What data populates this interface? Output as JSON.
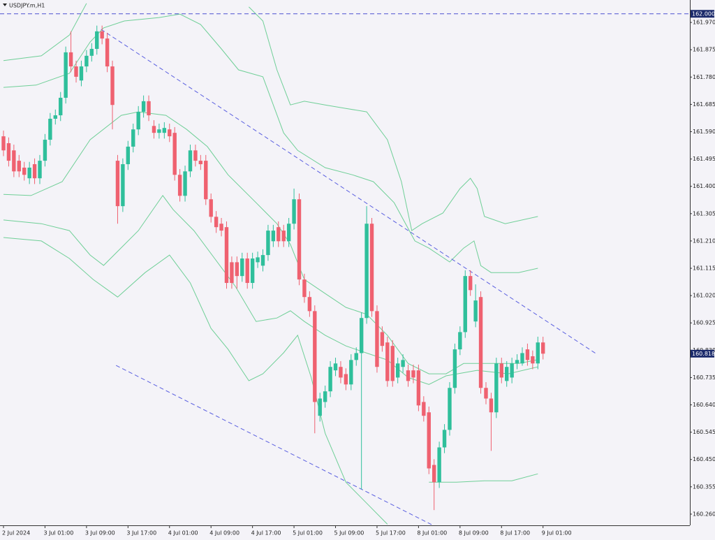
{
  "chart_data": {
    "type": "candlestick",
    "title": "USDJPY.m,H1",
    "categories": [
      "2 Jul 2024",
      null,
      null,
      null,
      null,
      null,
      null,
      null,
      "3 Jul 01:00",
      null,
      null,
      null,
      null,
      null,
      null,
      null,
      "3 Jul 09:00",
      null,
      null,
      null,
      null,
      null,
      null,
      null,
      "3 Jul 17:00",
      null,
      null,
      null,
      null,
      null,
      null,
      null,
      "4 Jul 01:00",
      null,
      null,
      null,
      null,
      null,
      null,
      null,
      "4 Jul 09:00",
      null,
      null,
      null,
      null,
      null,
      null,
      null,
      "4 Jul 17:00",
      null,
      null,
      null,
      null,
      null,
      null,
      null,
      "5 Jul 01:00",
      null,
      null,
      null,
      null,
      null,
      null,
      null,
      "5 Jul 09:00",
      null,
      null,
      null,
      null,
      null,
      null,
      null,
      "5 Jul 17:00",
      null,
      null,
      null,
      null,
      null,
      null,
      null,
      "8 Jul 01:00",
      null,
      null,
      null,
      null,
      null,
      null,
      null,
      "8 Jul 09:00",
      null,
      null,
      null,
      null,
      null,
      null,
      null,
      "8 Jul 17:00",
      null,
      null,
      null,
      null,
      null,
      null,
      null,
      "9 Jul 01:00"
    ],
    "open": [
      161.574,
      161.55,
      161.525,
      161.489,
      161.465,
      161.428,
      161.477,
      161.428,
      161.489,
      161.562,
      161.635,
      161.647,
      161.708,
      161.866,
      161.817,
      161.768,
      161.817,
      161.854,
      161.878,
      161.939,
      161.914,
      161.817,
      161.489,
      161.331,
      161.477,
      161.538,
      161.598,
      161.659,
      161.696,
      161.61,
      161.586,
      161.586,
      161.598,
      161.586,
      161.44,
      161.367,
      161.452,
      161.525,
      161.489,
      161.489,
      161.355,
      161.294,
      161.27,
      161.258,
      161.136,
      161.136,
      161.088,
      161.149,
      161.064,
      161.136,
      161.124,
      161.161,
      161.209,
      161.258,
      161.246,
      161.209,
      161.27,
      161.355,
      161.076,
      161.015,
      160.966,
      160.602,
      160.65,
      160.687,
      160.76,
      160.772,
      160.747,
      160.711,
      160.796,
      160.82,
      160.942,
      161.27,
      160.966,
      160.893,
      160.857,
      160.845,
      160.735,
      160.772,
      160.76,
      160.76,
      160.76,
      160.65,
      160.614,
      160.431,
      160.371,
      160.492,
      160.553,
      160.699,
      160.833,
      160.893,
      161.088,
      160.93,
      161.015,
      160.699,
      160.662,
      160.614,
      160.784,
      160.723,
      160.735,
      160.784,
      160.784,
      160.833,
      160.809,
      160.784,
      160.857
    ],
    "high": [
      161.594,
      161.57,
      161.545,
      161.509,
      161.485,
      161.485,
      161.497,
      161.509,
      161.582,
      161.655,
      161.667,
      161.728,
      161.886,
      161.939,
      161.837,
      161.837,
      161.874,
      161.898,
      161.959,
      161.959,
      161.934,
      161.837,
      161.509,
      161.497,
      161.558,
      161.618,
      161.679,
      161.716,
      161.716,
      161.63,
      161.618,
      161.623,
      161.618,
      161.606,
      161.46,
      161.472,
      161.545,
      161.545,
      161.509,
      161.509,
      161.375,
      161.314,
      161.29,
      161.278,
      161.156,
      161.156,
      161.169,
      161.169,
      161.169,
      161.173,
      161.181,
      161.266,
      161.266,
      161.278,
      161.266,
      161.29,
      161.392,
      161.375,
      161.096,
      161.035,
      160.986,
      160.682,
      160.707,
      160.792,
      160.804,
      160.792,
      160.767,
      160.816,
      160.84,
      160.962,
      161.331,
      161.29,
      160.986,
      160.913,
      160.877,
      160.865,
      160.804,
      160.816,
      160.78,
      160.78,
      160.78,
      160.67,
      160.634,
      160.451,
      160.512,
      160.573,
      160.719,
      160.853,
      160.913,
      161.108,
      161.108,
      161.059,
      161.035,
      160.719,
      160.682,
      160.804,
      160.804,
      160.792,
      160.804,
      160.816,
      160.84,
      160.853,
      160.829,
      160.877,
      160.877
    ],
    "low": [
      161.505,
      161.469,
      161.432,
      161.432,
      161.42,
      161.408,
      161.408,
      161.408,
      161.469,
      161.542,
      161.615,
      161.627,
      161.688,
      161.797,
      161.761,
      161.748,
      161.797,
      161.834,
      161.858,
      161.894,
      161.797,
      161.598,
      161.27,
      161.311,
      161.457,
      161.518,
      161.578,
      161.639,
      161.627,
      161.566,
      161.566,
      161.566,
      161.554,
      161.42,
      161.347,
      161.347,
      161.432,
      161.469,
      161.457,
      161.335,
      161.274,
      161.238,
      161.226,
      161.044,
      161.044,
      161.044,
      161.068,
      161.044,
      161.044,
      161.116,
      161.104,
      161.141,
      161.189,
      161.189,
      161.189,
      161.189,
      161.25,
      161.056,
      160.995,
      160.946,
      160.541,
      160.582,
      160.63,
      160.667,
      160.74,
      160.715,
      160.691,
      160.691,
      160.776,
      160.346,
      160.922,
      160.946,
      160.752,
      160.825,
      160.703,
      160.703,
      160.715,
      160.752,
      160.703,
      160.715,
      160.618,
      160.582,
      160.399,
      160.274,
      160.351,
      160.472,
      160.533,
      160.679,
      160.813,
      160.873,
      161.019,
      160.91,
      160.679,
      160.642,
      160.48,
      160.594,
      160.715,
      160.703,
      160.715,
      160.764,
      160.776,
      160.776,
      160.764,
      160.764,
      160.798
    ],
    "close": [
      161.525,
      161.489,
      161.452,
      161.452,
      161.44,
      161.465,
      161.428,
      161.489,
      161.562,
      161.635,
      161.647,
      161.708,
      161.866,
      161.817,
      161.781,
      161.817,
      161.854,
      161.878,
      161.939,
      161.914,
      161.817,
      161.683,
      161.331,
      161.477,
      161.538,
      161.598,
      161.659,
      161.696,
      161.647,
      161.586,
      161.598,
      161.603,
      161.574,
      161.44,
      161.367,
      161.452,
      161.525,
      161.489,
      161.477,
      161.355,
      161.294,
      161.258,
      161.246,
      161.064,
      161.064,
      161.088,
      161.149,
      161.064,
      161.149,
      161.153,
      161.161,
      161.246,
      161.246,
      161.209,
      161.209,
      161.27,
      161.355,
      161.076,
      161.015,
      160.966,
      160.65,
      160.662,
      160.687,
      160.772,
      160.784,
      160.735,
      160.711,
      160.796,
      160.82,
      160.942,
      161.27,
      160.966,
      160.772,
      160.845,
      160.723,
      160.723,
      160.784,
      160.796,
      160.723,
      160.735,
      160.638,
      160.602,
      160.419,
      160.371,
      160.492,
      160.553,
      160.699,
      160.833,
      160.893,
      161.088,
      161.039,
      161.003,
      160.699,
      160.662,
      160.614,
      160.784,
      160.735,
      160.772,
      160.784,
      160.796,
      160.82,
      160.796,
      160.784,
      160.857,
      160.818
    ],
    "up_color": "#2fbf9b",
    "down_color": "#ef6170",
    "ylim": [
      160.221,
      162.048
    ],
    "yticks": [
      {
        "value": 161.97,
        "label": "161.970"
      },
      {
        "value": 161.875,
        "label": "161.875"
      },
      {
        "value": 161.78,
        "label": "161.780"
      },
      {
        "value": 161.685,
        "label": "161.685"
      },
      {
        "value": 161.59,
        "label": "161.590"
      },
      {
        "value": 161.495,
        "label": "161.495"
      },
      {
        "value": 161.4,
        "label": "161.400"
      },
      {
        "value": 161.305,
        "label": "161.305"
      },
      {
        "value": 161.21,
        "label": "161.210"
      },
      {
        "value": 161.115,
        "label": "161.115"
      },
      {
        "value": 161.02,
        "label": "161.020"
      },
      {
        "value": 160.925,
        "label": "160.925"
      },
      {
        "value": 160.83,
        "label": "160.830"
      },
      {
        "value": 160.735,
        "label": "160.735"
      },
      {
        "value": 160.64,
        "label": "160.640"
      },
      {
        "value": 160.545,
        "label": "160.545"
      },
      {
        "value": 160.45,
        "label": "160.450"
      },
      {
        "value": 160.355,
        "label": "160.355"
      },
      {
        "value": 160.26,
        "label": "160.260"
      }
    ],
    "level": {
      "value": 162.0,
      "label": "162.000",
      "color": "#4a4fd0"
    },
    "last_price": 160.818,
    "bands": [
      {
        "color": "#6fcf97",
        "x": [
          0,
          7.3,
          12.7,
          16,
          30,
          47.3,
          50,
          52.7,
          55.3,
          58,
          62,
          66,
          70,
          74,
          76.7,
          78.7,
          80.7,
          84.7,
          88,
          90,
          91.3,
          92.7,
          96.7,
          103
        ],
        "values": [
          161.837,
          161.854,
          161.926,
          162.036,
          null,
          162.024,
          161.975,
          161.805,
          161.683,
          161.696,
          161.683,
          161.671,
          161.659,
          161.562,
          161.416,
          161.246,
          161.27,
          161.307,
          161.392,
          161.428,
          161.392,
          161.295,
          161.27,
          161.295
        ]
      },
      {
        "color": "#6fcf97",
        "x": [
          0,
          6.3,
          12.7,
          16.7,
          19.3,
          23.3,
          30,
          34,
          38,
          42,
          45.3,
          50,
          54,
          56.7,
          62,
          67.3,
          71.3,
          75.3,
          79.3,
          82,
          86,
          88.7,
          90.7,
          92,
          94,
          99.3,
          103
        ],
        "values": [
          161.744,
          161.752,
          161.793,
          161.902,
          161.951,
          161.975,
          161.987,
          161.999,
          161.963,
          161.878,
          161.805,
          161.781,
          161.586,
          161.525,
          161.465,
          161.44,
          161.416,
          161.343,
          161.21,
          161.185,
          161.137,
          161.185,
          161.21,
          161.124,
          161.1,
          161.1,
          161.115
        ]
      },
      {
        "color": "#6fcf97",
        "x": [
          0,
          5.3,
          11.3,
          16.7,
          22.7,
          26,
          31.3,
          35.3,
          39.3,
          43.3,
          48.7,
          52.7,
          55.3,
          58,
          62,
          66,
          70,
          74,
          78,
          82,
          85.3,
          88.7,
          91.3,
          95.3,
          99.3,
          103
        ],
        "values": [
          161.372,
          161.368,
          161.416,
          161.562,
          161.647,
          161.659,
          161.647,
          161.598,
          161.538,
          161.44,
          161.343,
          161.27,
          161.198,
          161.076,
          161.027,
          160.979,
          160.955,
          160.882,
          160.784,
          160.748,
          160.748,
          160.784,
          160.784,
          160.784,
          160.784,
          160.797
        ]
      },
      {
        "color": "#6fcf97",
        "x": [
          0,
          7.3,
          12.7,
          16.7,
          19.3,
          26,
          30.7,
          32.7,
          36.7,
          40.7,
          44.7,
          48.7,
          52.7,
          55.3,
          58,
          62,
          66,
          70,
          74,
          78,
          82,
          85.3,
          91.3,
          97.3,
          103
        ],
        "values": [
          161.283,
          161.27,
          161.246,
          161.161,
          161.125,
          161.246,
          161.368,
          161.319,
          161.246,
          161.149,
          161.052,
          160.93,
          160.942,
          160.967,
          160.93,
          160.882,
          160.845,
          160.82,
          160.796,
          160.735,
          160.711,
          160.741,
          160.76,
          160.748,
          160.772
        ]
      },
      {
        "color": "#6fcf97",
        "x": [
          0,
          7.3,
          12.7,
          17.3,
          22,
          27.3,
          32,
          36,
          40,
          43.3,
          47.3,
          50,
          54,
          56.7,
          59.3,
          62,
          66,
          70,
          74,
          77,
          82,
          87.3,
          92.7,
          98,
          103
        ],
        "values": [
          161.222,
          161.21,
          161.149,
          161.076,
          161.015,
          161.1,
          161.161,
          161.064,
          160.906,
          160.833,
          160.724,
          160.748,
          160.821,
          160.882,
          160.736,
          160.541,
          160.371,
          160.298,
          160.225,
          null,
          160.371,
          160.371,
          160.376,
          160.376,
          160.4
        ]
      }
    ],
    "trendlines": [
      {
        "color": "#5a5fe0",
        "x": [
          18.8,
          114.4
        ],
        "values": [
          161.946,
          160.816
        ]
      },
      {
        "color": "#5a5fe0",
        "x": [
          21.7,
          82.8
        ],
        "values": [
          160.777,
          160.221
        ]
      }
    ]
  }
}
